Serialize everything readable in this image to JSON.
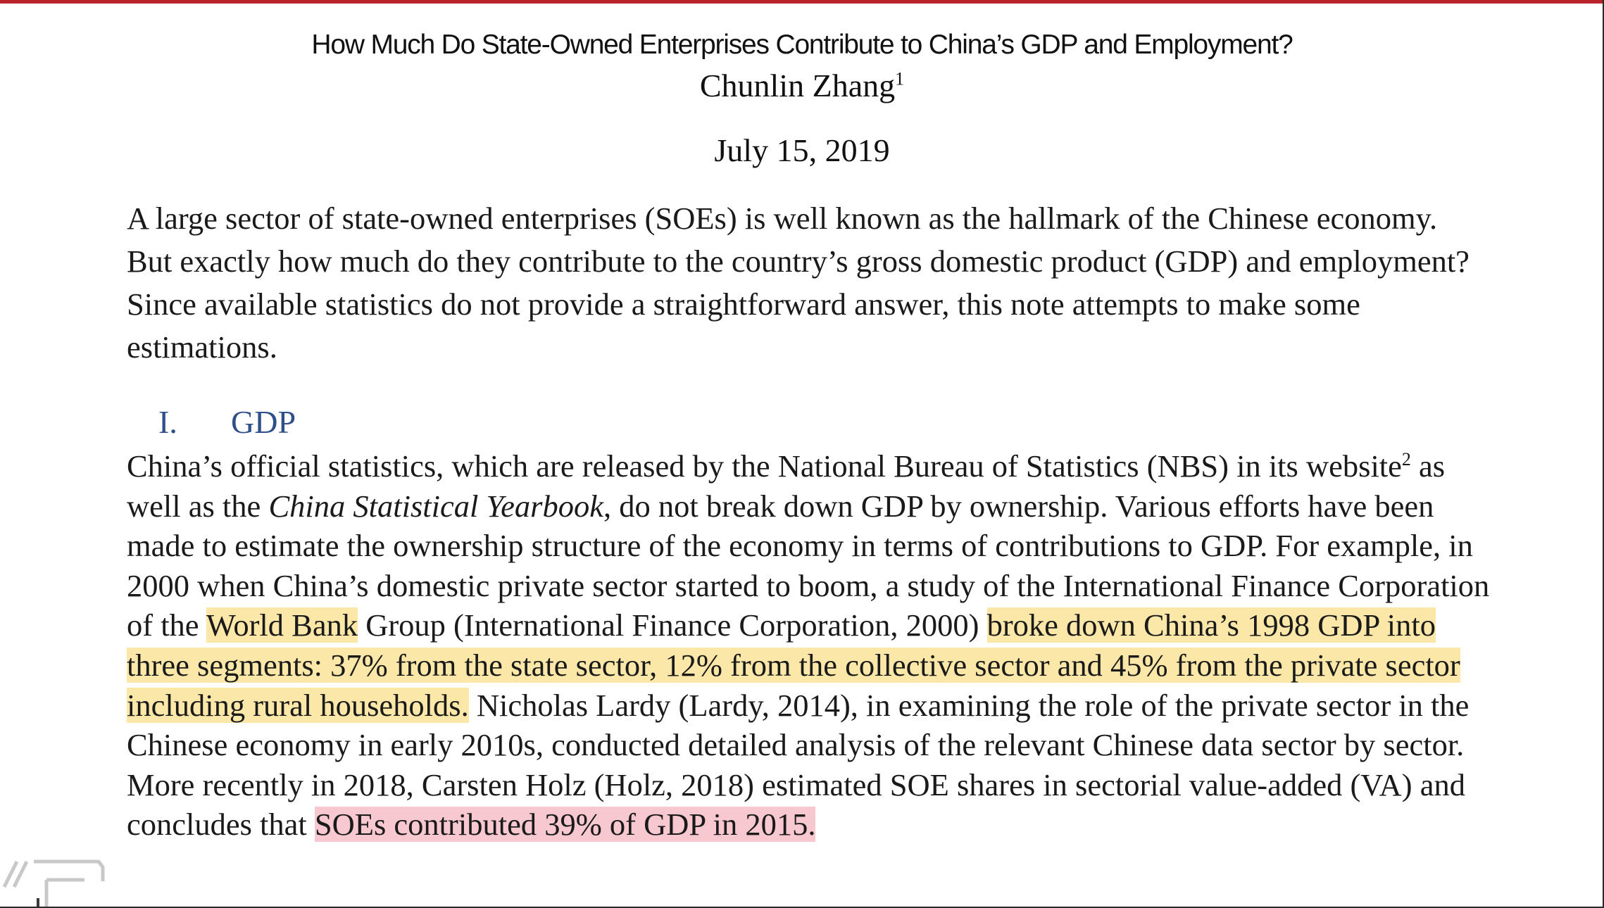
{
  "header": {
    "title": "How Much Do State-Owned Enterprises Contribute to China’s GDP and Employment?",
    "author": "Chunlin Zhang",
    "author_footnote_mark": "1",
    "date": "July 15, 2019"
  },
  "abstract": {
    "text": "A large sector of state-owned enterprises (SOEs) is well known as the hallmark of the Chinese economy. But exactly how much do they contribute to the country’s gross domestic product (GDP) and employment? Since available statistics do not provide a straightforward answer, this note attempts to make some estimations."
  },
  "section": {
    "number": "I.",
    "title": "GDP"
  },
  "body": {
    "seg1": "China’s official statistics, which are released by the National Bureau of Statistics (NBS) in its website",
    "footnote_mark": "2",
    "seg2": " as well as the ",
    "yearbook": "China Statistical Yearbook",
    "seg3": ", do not break down GDP by ownership. Various efforts have been made to estimate the ownership structure of the economy in terms of contributions to GDP. For example, in 2000 when China’s domestic private sector started to boom, a study of the International Finance Corporation of the ",
    "hl_world_bank": "World Bank",
    "seg4": " Group (International Finance Corporation, 2000) ",
    "hl_breakdown": "broke down China’s 1998 GDP into three segments: 37% from the state sector, 12% from the collective sector and 45% from the private sector including rural households.",
    "seg5": " Nicholas Lardy (Lardy, 2014),  in examining the role of the private sector in the Chinese economy in early 2010s, conducted detailed analysis of the relevant Chinese data sector by sector. More recently in 2018, Carsten Holz (Holz, 2018) estimated SOE shares in sectorial value-added (VA) and concludes that ",
    "hl_soe_share": "SOEs contributed 39% of GDP in 2015."
  },
  "colors": {
    "accent_bar": "#b8242a",
    "heading": "#2f4f8a",
    "highlight_yellow": "#fbe7a7",
    "highlight_pink": "#f7c8cf"
  }
}
